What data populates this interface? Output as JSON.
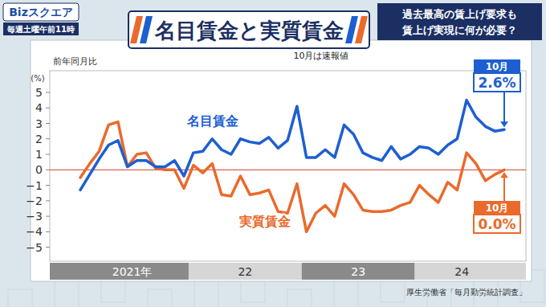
{
  "page": {
    "logo": "Bizスクエア",
    "schedule": "毎週土曜午前11時",
    "caption": [
      "過去最高の賃上げ要求も",
      "賃上げ実現に何が必要？"
    ]
  },
  "chart_data": {
    "type": "line",
    "title": "名目賃金と実質賃金",
    "note": "10月は速報値",
    "y_label": "前年同月比",
    "y_unit": "(%)",
    "source": "厚生労働省「毎月勤労統計調査」",
    "categories": [
      "2021年",
      null,
      null,
      null,
      null,
      null,
      null,
      null,
      null,
      null,
      null,
      null,
      "22",
      null,
      null,
      null,
      null,
      null,
      null,
      null,
      null,
      null,
      null,
      null,
      "23",
      null,
      null,
      null,
      null,
      null,
      null,
      null,
      null,
      null,
      null,
      null,
      "24",
      null,
      null,
      null,
      null,
      null,
      null,
      null,
      null,
      null
    ],
    "series": [
      {
        "name": "名目賃金",
        "color": "#1d5fd1",
        "callout": "10月",
        "values": [
          -1.3,
          -0.3,
          0.7,
          1.6,
          1.9,
          0.2,
          0.6,
          0.6,
          0.2,
          0.2,
          0.6,
          -0.4,
          1.1,
          1.2,
          2.0,
          1.3,
          1.0,
          2.0,
          1.8,
          1.7,
          2.1,
          1.4,
          1.9,
          4.1,
          0.8,
          0.8,
          1.3,
          0.8,
          2.9,
          2.3,
          1.1,
          0.8,
          0.6,
          1.5,
          0.7,
          1.0,
          1.5,
          1.4,
          1.0,
          1.6,
          2.0,
          4.5,
          3.4,
          2.8,
          2.5,
          2.6
        ],
        "value_labels": [
          null,
          null,
          null,
          null,
          null,
          null,
          null,
          null,
          null,
          null,
          null,
          null,
          null,
          null,
          null,
          null,
          null,
          null,
          null,
          null,
          null,
          null,
          null,
          null,
          null,
          null,
          null,
          null,
          null,
          null,
          null,
          null,
          null,
          null,
          null,
          null,
          null,
          null,
          null,
          null,
          null,
          null,
          null,
          null,
          null,
          "2.6%"
        ]
      },
      {
        "name": "実質賃金",
        "color": "#ea6a2c",
        "callout": "10月",
        "values": [
          -0.5,
          0.4,
          1.2,
          2.9,
          3.1,
          0.2,
          1.0,
          1.1,
          0.1,
          0.0,
          0.0,
          -1.2,
          0.3,
          -0.2,
          0.4,
          -1.6,
          -1.7,
          -0.4,
          -1.6,
          -1.5,
          -1.3,
          -2.7,
          -2.8,
          -0.9,
          -4.0,
          -2.8,
          -2.3,
          -3.0,
          -0.9,
          -1.6,
          -2.6,
          -2.7,
          -2.7,
          -2.6,
          -2.3,
          -2.1,
          -1.0,
          -1.6,
          -2.1,
          -0.8,
          -1.3,
          1.1,
          0.4,
          -0.7,
          -0.3,
          0.0
        ],
        "value_labels": [
          null,
          null,
          null,
          null,
          null,
          null,
          null,
          null,
          null,
          null,
          null,
          null,
          null,
          null,
          null,
          null,
          null,
          null,
          null,
          null,
          null,
          null,
          null,
          null,
          null,
          null,
          null,
          null,
          null,
          null,
          null,
          null,
          null,
          null,
          null,
          null,
          null,
          null,
          null,
          null,
          null,
          null,
          null,
          null,
          null,
          "0.0%"
        ]
      }
    ],
    "ylim": [
      -5.9,
      6.4
    ],
    "yticks": [
      {
        "value": -5,
        "label": "−5"
      },
      {
        "value": -4,
        "label": "−4"
      },
      {
        "value": -3,
        "label": "−3"
      },
      {
        "value": -2,
        "label": "−2"
      },
      {
        "value": -1,
        "label": "−1"
      },
      0,
      1,
      2,
      3,
      4,
      5
    ],
    "grid": false
  }
}
